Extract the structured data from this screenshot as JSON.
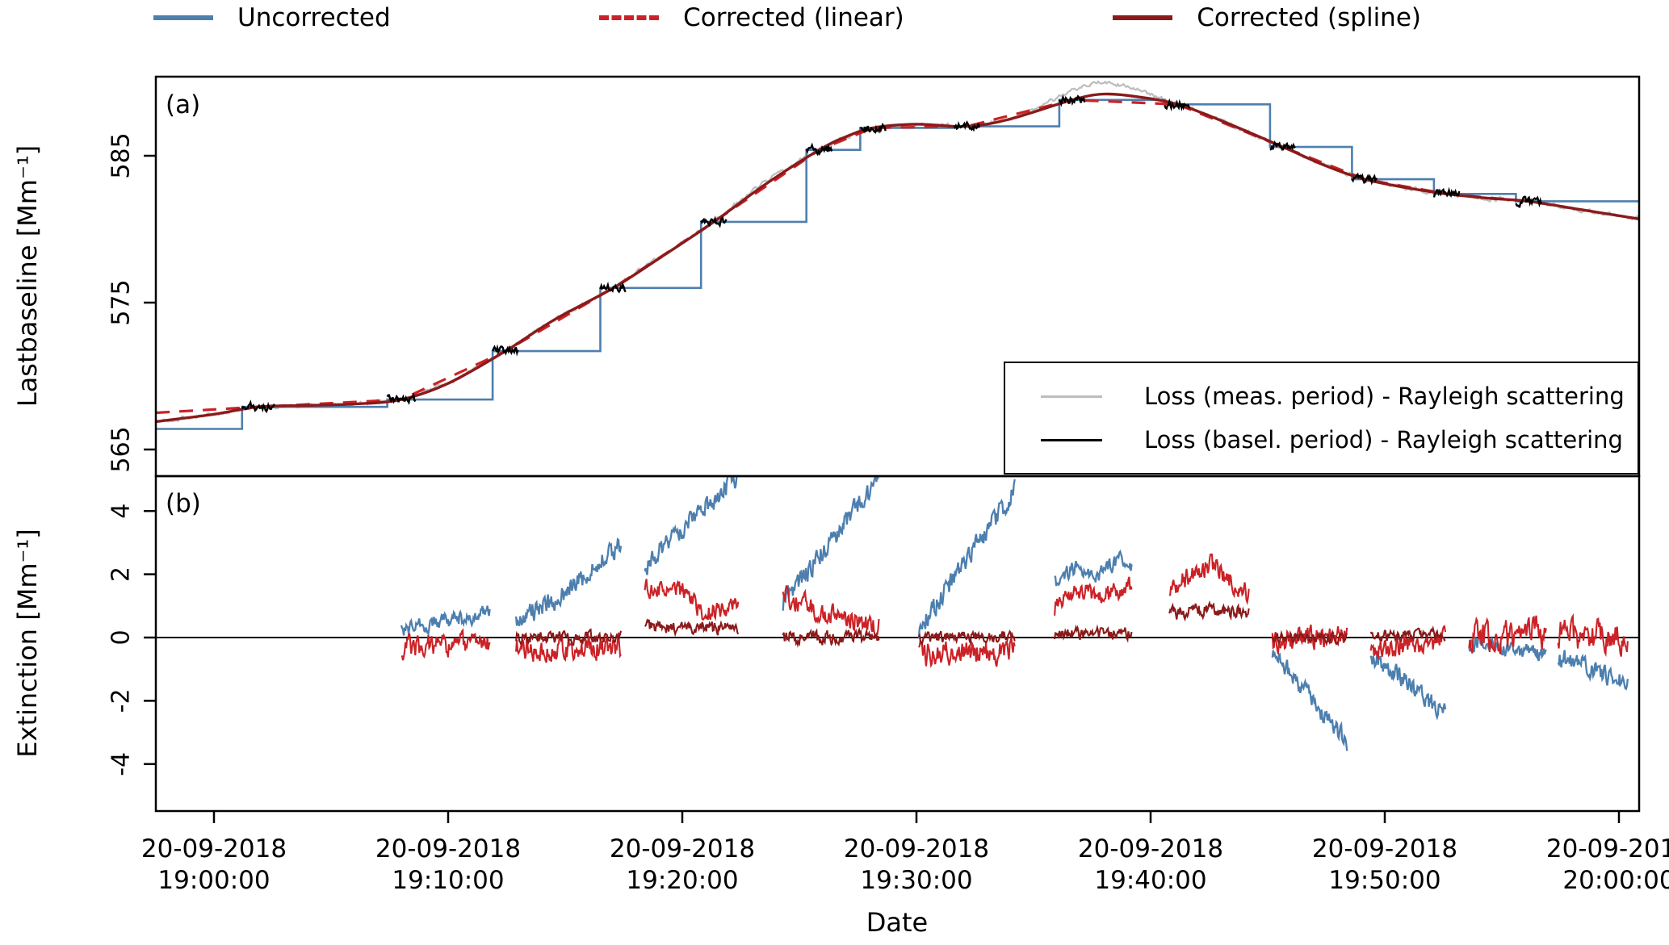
{
  "legend": {
    "items": [
      {
        "label": "Uncorrected",
        "color": "#4d7fae",
        "dash": "solid"
      },
      {
        "label": "Corrected (linear)",
        "color": "#cb2227",
        "dash": "dashed"
      },
      {
        "label": "Corrected (spline)",
        "color": "#8b1a1a",
        "dash": "solid"
      }
    ]
  },
  "panel_a": {
    "tag": "(a)",
    "ylabel": "Lastbaseline [Mm⁻¹]",
    "inner_legend": [
      {
        "label": "Loss (meas. period) - Rayleigh scattering",
        "color": "#bdbdbd"
      },
      {
        "label": "Loss (basel. period) - Rayleigh scattering",
        "color": "#000000"
      }
    ]
  },
  "panel_b": {
    "tag": "(b)",
    "ylabel": "Extinction [Mm⁻¹]"
  },
  "xlabel": "Date",
  "chart_data": {
    "type": "line",
    "noise_seed": 11,
    "colors": {
      "uncorrected": "#4d7fae",
      "corrected_linear": "#cb2227",
      "corrected_spline": "#8b1a1a",
      "loss_measurement": "#bdbdbd",
      "loss_baseline": "#000000"
    },
    "x_domain_minutes": [
      -2.48,
      60.86
    ],
    "x_ticks": [
      {
        "minute": 0,
        "date": "20-09-2018",
        "time": "19:00:00"
      },
      {
        "minute": 10,
        "date": "20-09-2018",
        "time": "19:10:00"
      },
      {
        "minute": 20,
        "date": "20-09-2018",
        "time": "19:20:00"
      },
      {
        "minute": 30,
        "date": "20-09-2018",
        "time": "19:30:00"
      },
      {
        "minute": 40,
        "date": "20-09-2018",
        "time": "19:40:00"
      },
      {
        "minute": 50,
        "date": "20-09-2018",
        "time": "19:50:00"
      },
      {
        "minute": 60,
        "date": "20-09-2018",
        "time": "20:00:00"
      }
    ],
    "panel_a": {
      "ylim": [
        563.2,
        590.4
      ],
      "yticks": [
        {
          "value": 565,
          "label": "565"
        },
        {
          "value": 575,
          "label": "575"
        },
        {
          "value": 585,
          "label": "585"
        }
      ],
      "uncorrected_steps": [
        {
          "from": -2.48,
          "to": 1.2,
          "value": 566.4
        },
        {
          "from": 1.2,
          "to": 7.4,
          "value": 567.9
        },
        {
          "from": 7.4,
          "to": 11.9,
          "value": 568.4
        },
        {
          "from": 11.9,
          "to": 16.5,
          "value": 571.7
        },
        {
          "from": 16.5,
          "to": 20.8,
          "value": 576.0
        },
        {
          "from": 20.8,
          "to": 25.3,
          "value": 580.5
        },
        {
          "from": 25.3,
          "to": 27.6,
          "value": 585.4
        },
        {
          "from": 27.6,
          "to": 31.6,
          "value": 586.9
        },
        {
          "from": 31.6,
          "to": 36.1,
          "value": 587.0
        },
        {
          "from": 36.1,
          "to": 40.6,
          "value": 588.8
        },
        {
          "from": 40.6,
          "to": 45.1,
          "value": 588.5
        },
        {
          "from": 45.1,
          "to": 48.6,
          "value": 585.6
        },
        {
          "from": 48.6,
          "to": 52.1,
          "value": 583.4
        },
        {
          "from": 52.1,
          "to": 55.6,
          "value": 582.4
        },
        {
          "from": 55.6,
          "to": 60.86,
          "value": 581.9
        }
      ],
      "corrected_linear_points": [
        [
          -2.48,
          567.5
        ],
        [
          1.9,
          567.9
        ],
        [
          8.0,
          568.4
        ],
        [
          12.45,
          571.7
        ],
        [
          17.05,
          576.0
        ],
        [
          21.35,
          580.5
        ],
        [
          25.85,
          585.4
        ],
        [
          28.15,
          586.9
        ],
        [
          32.15,
          587.0
        ],
        [
          36.65,
          588.8
        ],
        [
          41.15,
          588.5
        ],
        [
          45.65,
          585.6
        ],
        [
          49.15,
          583.4
        ],
        [
          52.65,
          582.4
        ],
        [
          56.15,
          581.9
        ],
        [
          60.86,
          580.7
        ]
      ],
      "corrected_spline_points": [
        [
          -2.48,
          566.9
        ],
        [
          0,
          567.4
        ],
        [
          1.9,
          567.9
        ],
        [
          4,
          568.0
        ],
        [
          6,
          568.1
        ],
        [
          8.0,
          568.4
        ],
        [
          10,
          569.5
        ],
        [
          12.45,
          571.7
        ],
        [
          14.5,
          573.8
        ],
        [
          17.05,
          576.0
        ],
        [
          19,
          578.0
        ],
        [
          21.35,
          580.5
        ],
        [
          23.5,
          583.0
        ],
        [
          25.85,
          585.4
        ],
        [
          27,
          586.3
        ],
        [
          28.15,
          586.9
        ],
        [
          30,
          587.15
        ],
        [
          32.15,
          587.0
        ],
        [
          34,
          587.5
        ],
        [
          36.65,
          588.8
        ],
        [
          38,
          589.2
        ],
        [
          39.5,
          589.0
        ],
        [
          41.15,
          588.5
        ],
        [
          43,
          587.4
        ],
        [
          45.65,
          585.6
        ],
        [
          47.5,
          584.3
        ],
        [
          49.15,
          583.4
        ],
        [
          51,
          582.8
        ],
        [
          52.65,
          582.4
        ],
        [
          54.5,
          582.1
        ],
        [
          56.15,
          581.9
        ],
        [
          58.5,
          581.3
        ],
        [
          60.86,
          580.7
        ]
      ],
      "loss_measurement": {
        "range": [
          -2.2,
          60.86
        ],
        "noise_amp": 0.16,
        "bumps": [
          {
            "center": 37.8,
            "width": 2.2,
            "amp": 0.85
          },
          {
            "center": 23.8,
            "width": 1.6,
            "amp": 0.25
          }
        ]
      },
      "loss_baseline_segments": [
        {
          "from": 1.2,
          "to": 2.6,
          "value": 567.9
        },
        {
          "from": 7.4,
          "to": 8.6,
          "value": 568.4
        },
        {
          "from": 11.9,
          "to": 13.0,
          "value": 571.7
        },
        {
          "from": 16.5,
          "to": 17.6,
          "value": 576.0
        },
        {
          "from": 20.8,
          "to": 21.9,
          "value": 580.5
        },
        {
          "from": 25.3,
          "to": 26.4,
          "value": 585.4
        },
        {
          "from": 27.6,
          "to": 28.7,
          "value": 586.9
        },
        {
          "from": 31.6,
          "to": 32.7,
          "value": 587.0
        },
        {
          "from": 36.1,
          "to": 37.2,
          "value": 588.8
        },
        {
          "from": 40.6,
          "to": 41.7,
          "value": 588.5
        },
        {
          "from": 45.1,
          "to": 46.2,
          "value": 585.6
        },
        {
          "from": 48.6,
          "to": 49.7,
          "value": 583.4
        },
        {
          "from": 52.1,
          "to": 53.2,
          "value": 582.4
        },
        {
          "from": 55.6,
          "to": 56.7,
          "value": 581.9
        }
      ]
    },
    "panel_b": {
      "ylim": [
        -5.5,
        5.1
      ],
      "yticks": [
        {
          "value": -4,
          "label": "-4"
        },
        {
          "value": -2,
          "label": "-2"
        },
        {
          "value": 0,
          "label": "0"
        },
        {
          "value": 2,
          "label": "2"
        },
        {
          "value": 4,
          "label": "4"
        }
      ],
      "zero_line": 0,
      "clusters": [
        {
          "from": 8.0,
          "to": 11.8,
          "series": [
            {
              "name": "uncorrected",
              "points": [
                [
                  0,
                  0.25
                ],
                [
                  1,
                  0.8
                ]
              ],
              "noise": 0.22
            },
            {
              "name": "corrected_linear",
              "points": [
                [
                  0,
                  -0.3
                ],
                [
                  1,
                  -0.2
                ]
              ],
              "noise": 0.3
            }
          ]
        },
        {
          "from": 12.9,
          "to": 17.4,
          "series": [
            {
              "name": "uncorrected",
              "points": [
                [
                  0,
                  0.5
                ],
                [
                  0.5,
                  1.5
                ],
                [
                  1,
                  3.0
                ]
              ],
              "noise": 0.28
            },
            {
              "name": "corrected_linear",
              "points": [
                [
                  0,
                  -0.35
                ],
                [
                  1,
                  -0.25
                ]
              ],
              "noise": 0.34
            },
            {
              "name": "corrected_spline",
              "points": [
                [
                  0,
                  0.0
                ],
                [
                  1,
                  0.0
                ]
              ],
              "noise": 0.17
            }
          ]
        },
        {
          "from": 18.4,
          "to": 22.4,
          "series": [
            {
              "name": "uncorrected",
              "points": [
                [
                  0,
                  2.3
                ],
                [
                  1,
                  5.1
                ]
              ],
              "noise": 0.28
            },
            {
              "name": "corrected_linear",
              "points": [
                [
                  0,
                  1.55
                ],
                [
                  0.45,
                  1.45
                ],
                [
                  0.6,
                  0.8
                ],
                [
                  1,
                  1.0
                ]
              ],
              "noise": 0.24
            },
            {
              "name": "corrected_spline",
              "points": [
                [
                  0,
                  0.35
                ],
                [
                  1,
                  0.3
                ]
              ],
              "noise": 0.18
            }
          ]
        },
        {
          "from": 24.3,
          "to": 28.4,
          "series": [
            {
              "name": "uncorrected",
              "points": [
                [
                  0,
                  1.1
                ],
                [
                  1,
                  5.0
                ]
              ],
              "noise": 0.28
            },
            {
              "name": "corrected_linear",
              "points": [
                [
                  0,
                  1.3
                ],
                [
                  0.5,
                  0.7
                ],
                [
                  1,
                  0.4
                ]
              ],
              "noise": 0.28
            },
            {
              "name": "corrected_spline",
              "points": [
                [
                  0,
                  0.0
                ],
                [
                  1,
                  0.0
                ]
              ],
              "noise": 0.18
            }
          ]
        },
        {
          "from": 30.1,
          "to": 34.2,
          "series": [
            {
              "name": "uncorrected",
              "points": [
                [
                  0,
                  0.25
                ],
                [
                  1,
                  4.65
                ]
              ],
              "noise": 0.28
            },
            {
              "name": "corrected_linear",
              "points": [
                [
                  0,
                  -0.5
                ],
                [
                  1,
                  -0.4
                ]
              ],
              "noise": 0.34
            },
            {
              "name": "corrected_spline",
              "points": [
                [
                  0,
                  0.0
                ],
                [
                  1,
                  0.05
                ]
              ],
              "noise": 0.15
            }
          ]
        },
        {
          "from": 35.9,
          "to": 39.2,
          "series": [
            {
              "name": "uncorrected",
              "points": [
                [
                  0,
                  1.75
                ],
                [
                  0.3,
                  2.3
                ],
                [
                  0.55,
                  1.9
                ],
                [
                  0.8,
                  2.45
                ],
                [
                  1,
                  2.3
                ]
              ],
              "noise": 0.22
            },
            {
              "name": "corrected_linear",
              "points": [
                [
                  0,
                  0.95
                ],
                [
                  0.35,
                  1.5
                ],
                [
                  0.6,
                  1.2
                ],
                [
                  1,
                  1.65
                ]
              ],
              "noise": 0.26
            },
            {
              "name": "corrected_spline",
              "points": [
                [
                  0,
                  0.1
                ],
                [
                  1,
                  0.15
                ]
              ],
              "noise": 0.16
            }
          ]
        },
        {
          "from": 40.8,
          "to": 44.2,
          "series": [
            {
              "name": "corrected_linear",
              "points": [
                [
                  0,
                  1.5
                ],
                [
                  0.5,
                  2.35
                ],
                [
                  1,
                  1.4
                ]
              ],
              "noise": 0.28
            },
            {
              "name": "corrected_spline",
              "points": [
                [
                  0,
                  0.75
                ],
                [
                  0.5,
                  0.9
                ],
                [
                  1,
                  0.8
                ]
              ],
              "noise": 0.18
            }
          ]
        },
        {
          "from": 45.2,
          "to": 48.4,
          "series": [
            {
              "name": "uncorrected",
              "points": [
                [
                  0,
                  -0.4
                ],
                [
                  1,
                  -3.35
                ]
              ],
              "noise": 0.26
            },
            {
              "name": "corrected_linear",
              "points": [
                [
                  0,
                  -0.15
                ],
                [
                  1,
                  0.1
                ]
              ],
              "noise": 0.3
            },
            {
              "name": "corrected_spline",
              "points": [
                [
                  0,
                  0.0
                ],
                [
                  1,
                  0.0
                ]
              ],
              "noise": 0.15
            }
          ]
        },
        {
          "from": 49.4,
          "to": 52.6,
          "series": [
            {
              "name": "uncorrected",
              "points": [
                [
                  0,
                  -0.5
                ],
                [
                  1,
                  -2.45
                ]
              ],
              "noise": 0.26
            },
            {
              "name": "corrected_linear",
              "points": [
                [
                  0,
                  -0.3
                ],
                [
                  1,
                  -0.1
                ]
              ],
              "noise": 0.3
            },
            {
              "name": "corrected_spline",
              "points": [
                [
                  0,
                  0.05
                ],
                [
                  1,
                  0.1
                ]
              ],
              "noise": 0.15
            }
          ]
        },
        {
          "from": 53.6,
          "to": 56.9,
          "series": [
            {
              "name": "uncorrected",
              "points": [
                [
                  0,
                  -0.15
                ],
                [
                  1,
                  -0.55
                ]
              ],
              "noise": 0.22
            },
            {
              "name": "corrected_linear",
              "points": [
                [
                  0,
                  0.0
                ],
                [
                  1,
                  0.1
                ]
              ],
              "noise": 0.42
            }
          ]
        },
        {
          "from": 57.4,
          "to": 60.4,
          "series": [
            {
              "name": "uncorrected",
              "points": [
                [
                  0,
                  -0.6
                ],
                [
                  1,
                  -1.45
                ]
              ],
              "noise": 0.24
            },
            {
              "name": "corrected_linear",
              "points": [
                [
                  0,
                  0.1
                ],
                [
                  1,
                  0.0
                ]
              ],
              "noise": 0.42
            }
          ]
        }
      ]
    }
  }
}
